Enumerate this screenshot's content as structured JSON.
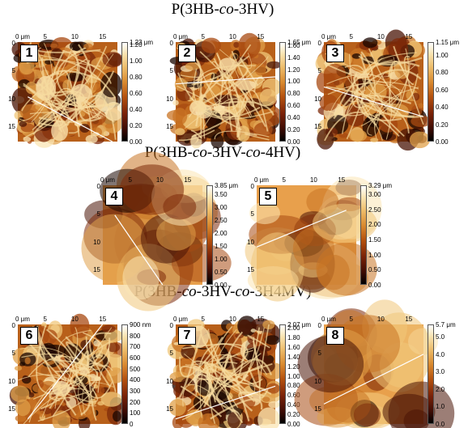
{
  "headings": [
    {
      "prefix": "P(3HB-",
      "italic": "co",
      "suffix": "-3HV)"
    },
    {
      "prefix": "P(3HB-",
      "italic": "co",
      "middle": "-3HV-",
      "italic2": "co",
      "suffix": "-4HV)"
    },
    {
      "prefix": "P(3HB-",
      "italic": "co",
      "middle": "-3HV-",
      "italic2": "co",
      "suffix": "-3H4MV)"
    }
  ],
  "x_ticks": [
    "0 μm",
    "5",
    "10",
    "15"
  ],
  "y_ticks": [
    "0",
    "5",
    "10",
    "15"
  ],
  "panels": [
    {
      "label": "1",
      "scale_top": "1.23 μm",
      "scale_ticks": [
        "1.20",
        "1.00",
        "0.80",
        "0.60",
        "0.40",
        "0.20",
        "0.00"
      ],
      "color_max": 1.23,
      "texture": "fibrous",
      "line_level": 0.0
    },
    {
      "label": "2",
      "scale_top": "1.65 μm",
      "scale_ticks": [
        "1.60",
        "1.40",
        "1.20",
        "1.00",
        "0.80",
        "0.60",
        "0.40",
        "0.20",
        "0.00"
      ],
      "color_max": 1.65,
      "texture": "fibrous",
      "line_level": 0.0
    },
    {
      "label": "3",
      "scale_top": "1.15 μm",
      "scale_ticks": [
        "1.00",
        "0.80",
        "0.60",
        "0.40",
        "0.20",
        "0.00"
      ],
      "color_max": 1.15,
      "texture": "mixed",
      "line_level": 0.0
    },
    {
      "label": "4",
      "scale_top": "3.85 μm",
      "scale_ticks": [
        "3.50",
        "3.00",
        "2.50",
        "2.00",
        "1.50",
        "1.00",
        "0.50",
        "0.00"
      ],
      "color_max": 3.85,
      "texture": "smooth",
      "line_level": 0.0
    },
    {
      "label": "5",
      "scale_top": "3.29 μm",
      "scale_ticks": [
        "3.00",
        "2.50",
        "2.00",
        "1.50",
        "1.00",
        "0.50",
        "0.00"
      ],
      "color_max": 3.29,
      "texture": "smooth",
      "line_level": 0.0
    },
    {
      "label": "6",
      "scale_top": "900 nm",
      "scale_ticks": [
        "800",
        "700",
        "600",
        "500",
        "400",
        "300",
        "200",
        "100",
        "0"
      ],
      "color_max": 900,
      "texture": "fibrous",
      "line_level": 0.0
    },
    {
      "label": "7",
      "scale_top": "2.07 μm",
      "scale_ticks": [
        "2.00",
        "1.80",
        "1.60",
        "1.40",
        "1.20",
        "1.00",
        "0.80",
        "0.60",
        "0.40",
        "0.20",
        "0.00"
      ],
      "color_max": 2.07,
      "texture": "fibrous",
      "line_level": 0.0
    },
    {
      "label": "8",
      "scale_top": "5.7 μm",
      "scale_ticks": [
        "5.0",
        "4.0",
        "3.0",
        "2.0",
        "1.0",
        "0.0"
      ],
      "color_max": 5.7,
      "texture": "smooth",
      "line_level": 0.0
    }
  ]
}
